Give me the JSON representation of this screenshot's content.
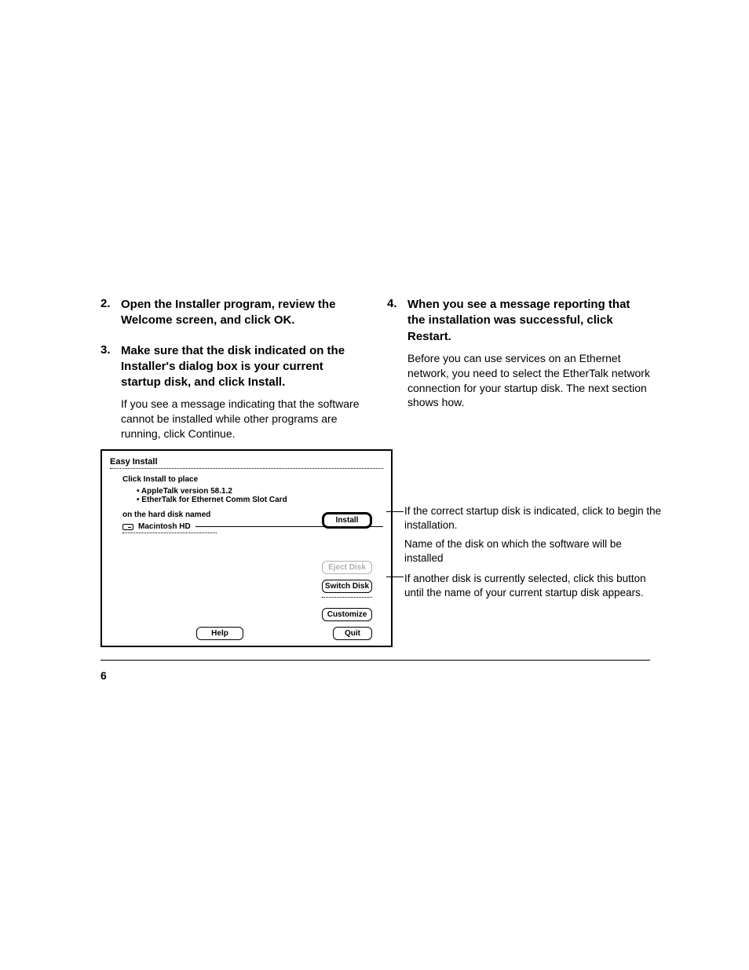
{
  "steps": {
    "s2": {
      "num": "2.",
      "title": "Open the Installer program, review the Welcome screen, and click OK."
    },
    "s3": {
      "num": "3.",
      "title": "Make sure that the disk indicated on the Installer's dialog box is your current startup disk, and click Install.",
      "body": "If you see a message indicating that the software cannot be installed while other programs are running, click Continue."
    },
    "s4": {
      "num": "4.",
      "title": "When you see a message reporting that the installation was successful, click Restart.",
      "body": "Before you can use services on an Ethernet network, you need to select the EtherTalk network connection for your startup disk. The next section shows how."
    }
  },
  "dialog": {
    "title": "Easy Install",
    "click_label": "Click Install to place",
    "bullet1": "AppleTalk version 58.1.2",
    "bullet2": "EtherTalk for Ethernet Comm Slot Card",
    "disk_label": "on the hard disk named",
    "disk_name": "Macintosh HD",
    "buttons": {
      "install": "Install",
      "eject": "Eject Disk",
      "switch": "Switch Disk",
      "customize": "Customize",
      "help": "Help",
      "quit": "Quit"
    }
  },
  "callouts": {
    "c1": "If the correct startup disk is indicated, click to begin the installation.",
    "c2": "Name of the disk on which the software will be installed",
    "c3": "If another disk is currently selected, click this button until the name of your current startup disk appears."
  },
  "page_number": "6"
}
